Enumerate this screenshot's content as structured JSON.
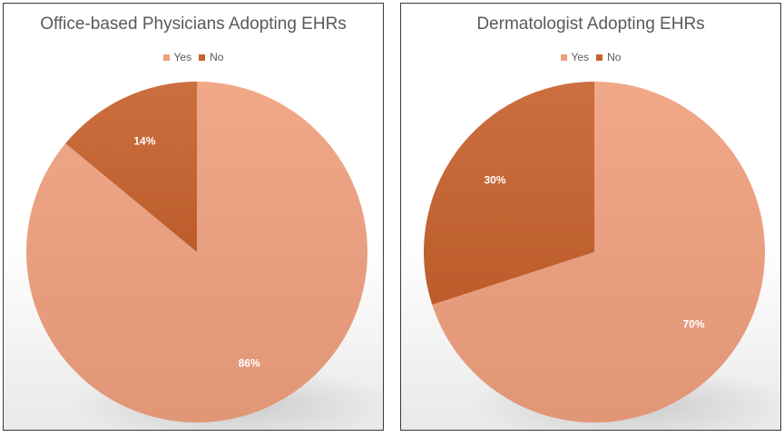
{
  "colors": {
    "yes": "#EFA07E",
    "no": "#C8622E"
  },
  "chart_data": [
    {
      "type": "pie",
      "title": "Office-based Physicians Adopting EHRs",
      "categories": [
        "Yes",
        "No"
      ],
      "values": [
        86,
        14
      ],
      "labels": [
        "86%",
        "14%"
      ],
      "legend": {
        "position": "top",
        "entries": [
          "Yes",
          "No"
        ]
      }
    },
    {
      "type": "pie",
      "title": "Dermatologist Adopting EHRs",
      "categories": [
        "Yes",
        "No"
      ],
      "values": [
        70,
        30
      ],
      "labels": [
        "70%",
        "30%"
      ],
      "legend": {
        "position": "top",
        "entries": [
          "Yes",
          "No"
        ]
      }
    }
  ]
}
